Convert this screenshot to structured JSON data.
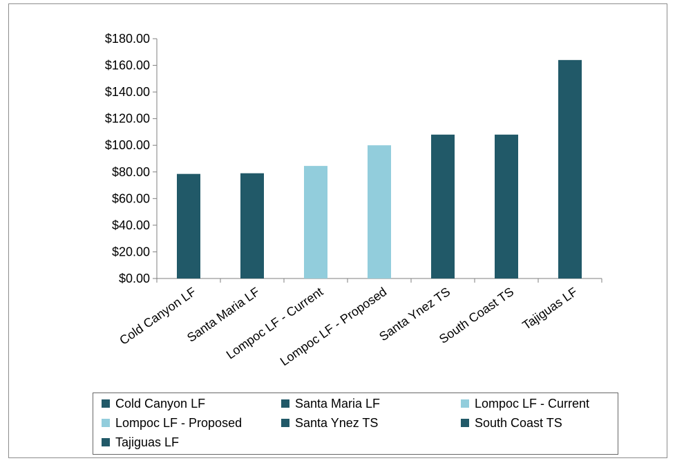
{
  "chart_data": {
    "type": "bar",
    "title": "",
    "xlabel": "",
    "ylabel": "",
    "categories": [
      "Cold Canyon LF",
      "Santa Maria LF",
      "Lompoc LF - Current",
      "Lompoc LF - Proposed",
      "Santa Ynez TS",
      "South Coast TS",
      "Tajiguas LF"
    ],
    "values": [
      78.5,
      79.0,
      84.5,
      100.0,
      108.0,
      108.0,
      164.0
    ],
    "colors": [
      "#215968",
      "#215968",
      "#92CDDC",
      "#92CDDC",
      "#215968",
      "#215968",
      "#215968"
    ],
    "ylim": [
      0,
      180
    ],
    "yticks": [
      "$0.00",
      "$20.00",
      "$40.00",
      "$60.00",
      "$80.00",
      "$100.00",
      "$120.00",
      "$140.00",
      "$160.00",
      "$180.00"
    ],
    "grid": false,
    "legend_position": "bottom",
    "legend": [
      {
        "label": "Cold Canyon LF",
        "color": "#215968"
      },
      {
        "label": "Santa Maria LF",
        "color": "#215968"
      },
      {
        "label": "Lompoc LF - Current",
        "color": "#92CDDC"
      },
      {
        "label": "Lompoc LF - Proposed",
        "color": "#92CDDC"
      },
      {
        "label": "Santa Ynez TS",
        "color": "#215968"
      },
      {
        "label": "South Coast TS",
        "color": "#215968"
      },
      {
        "label": "Tajiguas LF",
        "color": "#215968"
      }
    ]
  }
}
